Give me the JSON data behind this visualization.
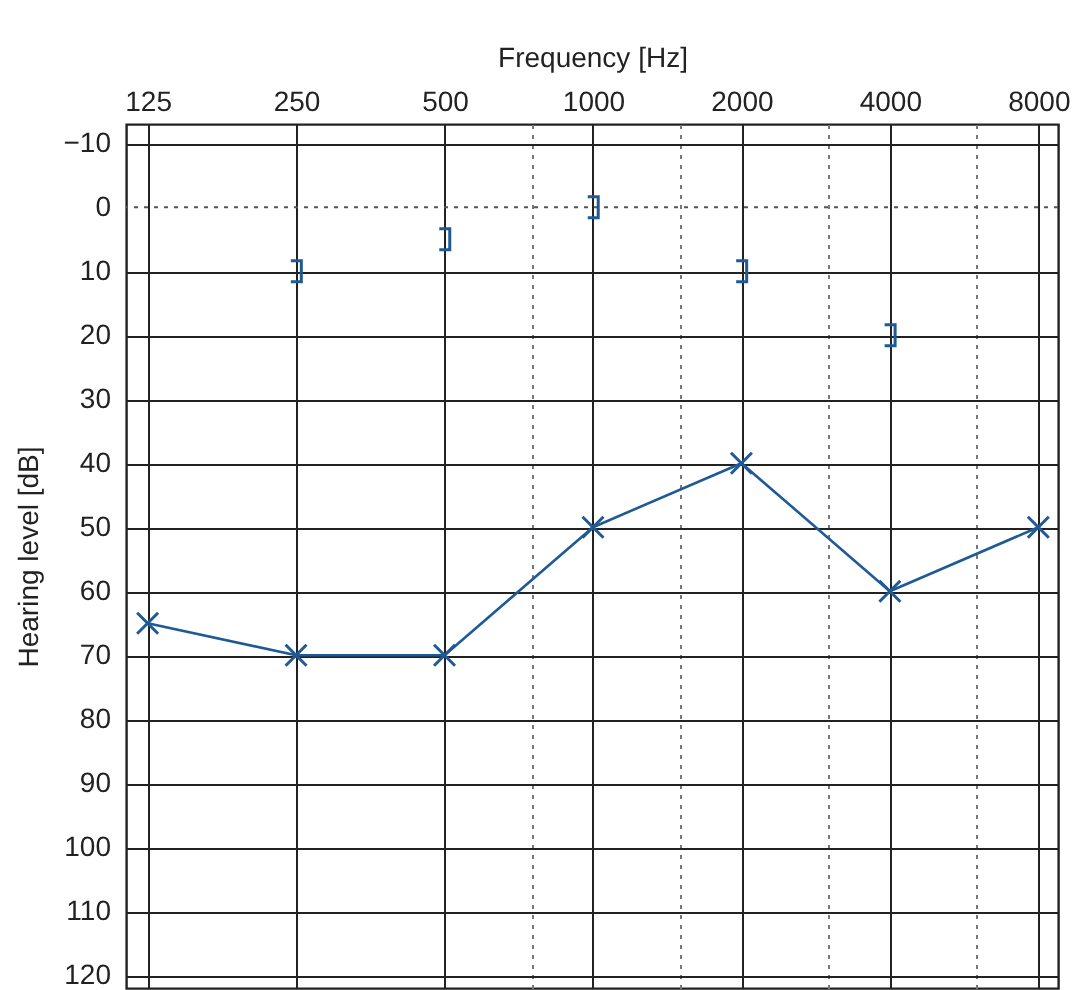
{
  "chart_data": {
    "type": "line",
    "xlabel": "Frequency [Hz]",
    "ylabel": "Hearing level [dB]",
    "x": [
      125,
      250,
      500,
      1000,
      2000,
      4000,
      8000
    ],
    "series": [
      {
        "color": "#1f5a96",
        "marker": "cross",
        "values": [
          65,
          70,
          70,
          50,
          40,
          60,
          50
        ]
      },
      {
        "type": "scatter",
        "color": "#1f5a96",
        "x": [
          250,
          500,
          1000,
          2000,
          4000
        ],
        "values": [
          10,
          5,
          0,
          10,
          20
        ]
      }
    ],
    "log": "x",
    "xlim": [
      113,
      8770
    ],
    "ylim": [
      122,
      -13
    ],
    "xticks": [
      125,
      250,
      500,
      {
        "value": 750,
        "label": null
      },
      1000,
      {
        "value": 1500,
        "label": null
      },
      2000,
      {
        "value": 3000,
        "label": null
      },
      4000,
      {
        "value": 6000,
        "label": null
      },
      8000
    ],
    "yticks": [
      {
        "value": -10,
        "label": "−10"
      },
      0,
      10,
      20,
      30,
      40,
      50,
      60,
      70,
      80,
      90,
      100,
      110,
      120
    ],
    "grid": true,
    "ref_lines": [
      {
        "axis": "y",
        "value": 0,
        "line_style": "dotted",
        "color": "#555555"
      }
    ]
  }
}
